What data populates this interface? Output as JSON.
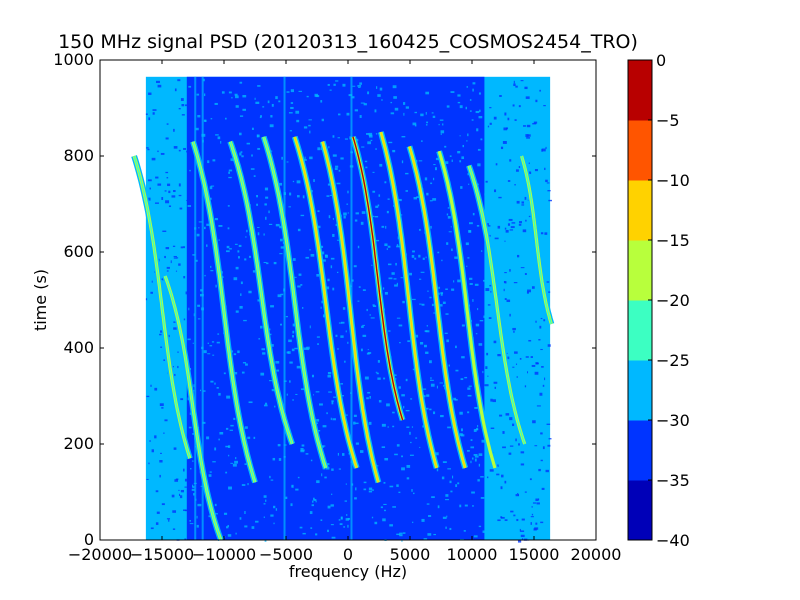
{
  "chart_data": {
    "type": "heatmap",
    "title": "150 MHz signal PSD (20120313_160425_COSMOS2454_TRO)",
    "xlabel": "frequency (Hz)",
    "ylabel": "time (s)",
    "xlim": [
      -20000,
      20000
    ],
    "ylim": [
      0,
      1000
    ],
    "x_ticks": [
      -20000,
      -15000,
      -10000,
      -5000,
      0,
      5000,
      10000,
      15000,
      20000
    ],
    "x_tick_labels": [
      "−20000",
      "−15000",
      "−10000",
      "−5000",
      "0",
      "5000",
      "10000",
      "15000",
      "20000"
    ],
    "y_ticks": [
      0,
      200,
      400,
      600,
      800,
      1000
    ],
    "y_tick_labels": [
      "0",
      "200",
      "400",
      "600",
      "800",
      "1000"
    ],
    "data_extent": {
      "freq_min": -16300,
      "freq_max": 16300,
      "time_min": 0,
      "time_max": 965
    },
    "background_noise_level_db": -32,
    "background_edge_level_db": -28,
    "doppler_tracks": [
      {
        "center_freq": -15000,
        "t_top": 800,
        "t_bottom": 170,
        "sweep_hz": 4500,
        "peak_db": -22
      },
      {
        "center_freq": -12500,
        "t_top": 550,
        "t_bottom": 0,
        "sweep_hz": 4500,
        "peak_db": -22
      },
      {
        "center_freq": -10000,
        "t_top": 830,
        "t_bottom": 120,
        "sweep_hz": 5000,
        "peak_db": -25
      },
      {
        "center_freq": -7000,
        "t_top": 830,
        "t_bottom": 200,
        "sweep_hz": 5000,
        "peak_db": -25
      },
      {
        "center_freq": -4300,
        "t_top": 840,
        "t_bottom": 150,
        "sweep_hz": 5000,
        "peak_db": -22
      },
      {
        "center_freq": -1800,
        "t_top": 840,
        "t_bottom": 150,
        "sweep_hz": 5000,
        "peak_db": -12
      },
      {
        "center_freq": 200,
        "t_top": 830,
        "t_bottom": 120,
        "sweep_hz": 4500,
        "peak_db": -12
      },
      {
        "center_freq": 2400,
        "t_top": 840,
        "t_bottom": 250,
        "sweep_hz": 4000,
        "peak_db": -3
      },
      {
        "center_freq": 4900,
        "t_top": 850,
        "t_bottom": 150,
        "sweep_hz": 4500,
        "peak_db": -12
      },
      {
        "center_freq": 7200,
        "t_top": 820,
        "t_bottom": 150,
        "sweep_hz": 4500,
        "peak_db": -12
      },
      {
        "center_freq": 9600,
        "t_top": 810,
        "t_bottom": 150,
        "sweep_hz": 4500,
        "peak_db": -18
      },
      {
        "center_freq": 12000,
        "t_top": 780,
        "t_bottom": 200,
        "sweep_hz": 4500,
        "peak_db": -22
      },
      {
        "center_freq": 15200,
        "t_top": 800,
        "t_bottom": 450,
        "sweep_hz": 2400,
        "peak_db": -22
      }
    ],
    "colorbar": {
      "min": -40,
      "max": 0,
      "levels": [
        -40,
        -35,
        -30,
        -25,
        -20,
        -15,
        -10,
        -5,
        0
      ],
      "tick_labels": [
        "−40",
        "−35",
        "−30",
        "−25",
        "−20",
        "−15",
        "−10",
        "−5",
        "0"
      ],
      "colors": [
        "#0000b8",
        "#0034ff",
        "#00b8ff",
        "#3cffc2",
        "#b8ff3c",
        "#ffd200",
        "#ff5500",
        "#b80000"
      ]
    },
    "grid": false,
    "legend": "none"
  }
}
